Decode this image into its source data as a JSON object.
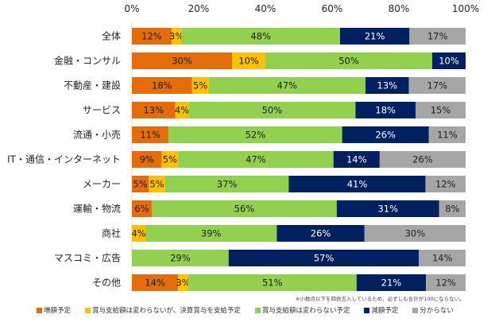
{
  "chart_data": {
    "type": "bar",
    "orientation": "horizontal",
    "stacked": true,
    "title": "",
    "xlabel": "",
    "ylabel": "",
    "xlim": [
      0,
      100
    ],
    "x_ticks": [
      "0%",
      "20%",
      "40%",
      "60%",
      "80%",
      "100%"
    ],
    "x_tick_values": [
      0,
      20,
      40,
      60,
      80,
      100
    ],
    "x_ticks_position": "top",
    "grid": false,
    "legend_position": "bottom",
    "categories": [
      "全体",
      "金融・コンサル",
      "不動産・建設",
      "サービス",
      "流通・小売",
      "IT・通信・インターネット",
      "メーカー",
      "運輸・物流",
      "商社",
      "マスコミ・広告",
      "その他"
    ],
    "series": [
      {
        "name": "増額予定",
        "color": "#e46c0a",
        "label_color": "#222222",
        "values": [
          12,
          30,
          18,
          13,
          11,
          9,
          5,
          6,
          0,
          0,
          14
        ]
      },
      {
        "name": "賞与支給額は変わらないが、決算賞与を支給予定",
        "color": "#ffc000",
        "label_color": "#222222",
        "values": [
          3,
          10,
          5,
          4,
          0,
          5,
          5,
          0,
          4,
          0,
          3
        ]
      },
      {
        "name": "賞与支給額は変わらない予定",
        "color": "#92d050",
        "label_color": "#222222",
        "values": [
          48,
          50,
          47,
          50,
          52,
          47,
          37,
          56,
          39,
          29,
          51
        ]
      },
      {
        "name": "減額予定",
        "color": "#002060",
        "label_color": "#ffffff",
        "values": [
          21,
          10,
          13,
          18,
          26,
          14,
          41,
          31,
          26,
          57,
          21
        ]
      },
      {
        "name": "分からない",
        "color": "#a6a6a6",
        "label_color": "#222222",
        "values": [
          17,
          0,
          17,
          15,
          11,
          26,
          12,
          8,
          30,
          14,
          12
        ]
      }
    ],
    "value_suffix": "%",
    "annotations": [
      "※小数点以下を四捨五入しているため、必ずしも合計が100にならない。"
    ]
  },
  "note": "※小数点以下を四捨五入しているため、必ずしも合計が100にならない。"
}
